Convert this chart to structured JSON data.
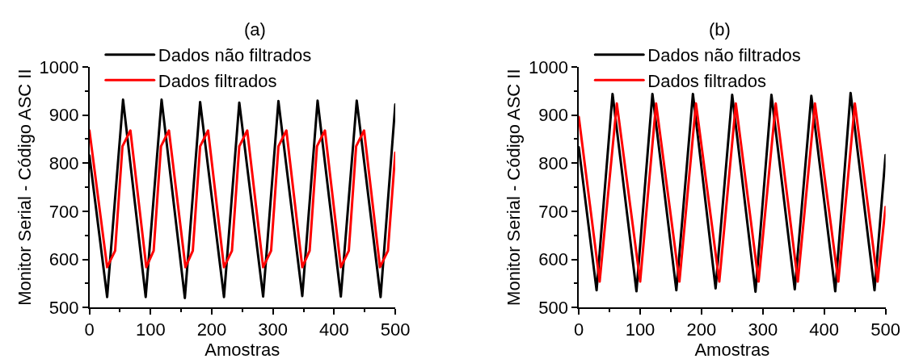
{
  "chart_data": [
    {
      "type": "line",
      "title": "(a)",
      "xlabel": "Amostras",
      "ylabel": "Monitor Serial - Código ASC II",
      "xlim": [
        0,
        500
      ],
      "xticks": [
        0,
        100,
        200,
        300,
        400,
        500
      ],
      "ylim": [
        500,
        1000
      ],
      "yticks": [
        500,
        600,
        700,
        800,
        900,
        1000
      ],
      "legend": "top left",
      "marker": "none",
      "line_style": "solid",
      "series": [
        {
          "name": "Dados não filtrados",
          "color": "#000000",
          "x": [
            0,
            29,
            55,
            92,
            118,
            156,
            181,
            220,
            245,
            284,
            309,
            348,
            373,
            411,
            437,
            476,
            500
          ],
          "values": [
            816,
            522,
            932,
            522,
            932,
            520,
            927,
            522,
            926,
            523,
            929,
            524,
            930,
            523,
            930,
            522,
            922
          ]
        },
        {
          "name": "Dados filtrados",
          "color": "#ff0000",
          "x": [
            0,
            29,
            42,
            54,
            67,
            93,
            105,
            117,
            130,
            157,
            169,
            181,
            194,
            220,
            233,
            245,
            258,
            284,
            297,
            309,
            322,
            348,
            360,
            372,
            385,
            411,
            424,
            436,
            449,
            475,
            488,
            500
          ],
          "values": [
            868,
            584,
            618,
            835,
            868,
            584,
            618,
            835,
            868,
            584,
            618,
            835,
            868,
            584,
            618,
            835,
            868,
            584,
            618,
            835,
            868,
            584,
            618,
            835,
            868,
            584,
            618,
            835,
            868,
            584,
            618,
            822
          ]
        }
      ]
    },
    {
      "type": "line",
      "title": "(b)",
      "xlabel": "Amostras",
      "ylabel": "Monitor Serial - Código ASC II",
      "xlim": [
        0,
        500
      ],
      "xticks": [
        0,
        100,
        200,
        300,
        400,
        500
      ],
      "ylim": [
        500,
        1000
      ],
      "yticks": [
        500,
        600,
        700,
        800,
        900,
        1000
      ],
      "legend": "top left",
      "marker": "none",
      "line_style": "solid",
      "series": [
        {
          "name": "Dados não filtrados",
          "color": "#000000",
          "x": [
            0,
            29,
            55,
            94,
            120,
            159,
            186,
            223,
            250,
            288,
            314,
            352,
            379,
            418,
            443,
            482,
            500
          ],
          "values": [
            833,
            536,
            944,
            534,
            944,
            536,
            944,
            540,
            942,
            533,
            942,
            538,
            940,
            534,
            946,
            536,
            817
          ]
        },
        {
          "name": "Dados filtrados",
          "color": "#ff0000",
          "x": [
            0,
            34,
            62,
            100,
            126,
            164,
            191,
            229,
            256,
            293,
            321,
            357,
            385,
            423,
            450,
            487,
            500
          ],
          "values": [
            896,
            554,
            924,
            554,
            924,
            554,
            924,
            554,
            924,
            554,
            924,
            554,
            924,
            554,
            924,
            554,
            709
          ]
        }
      ]
    }
  ]
}
